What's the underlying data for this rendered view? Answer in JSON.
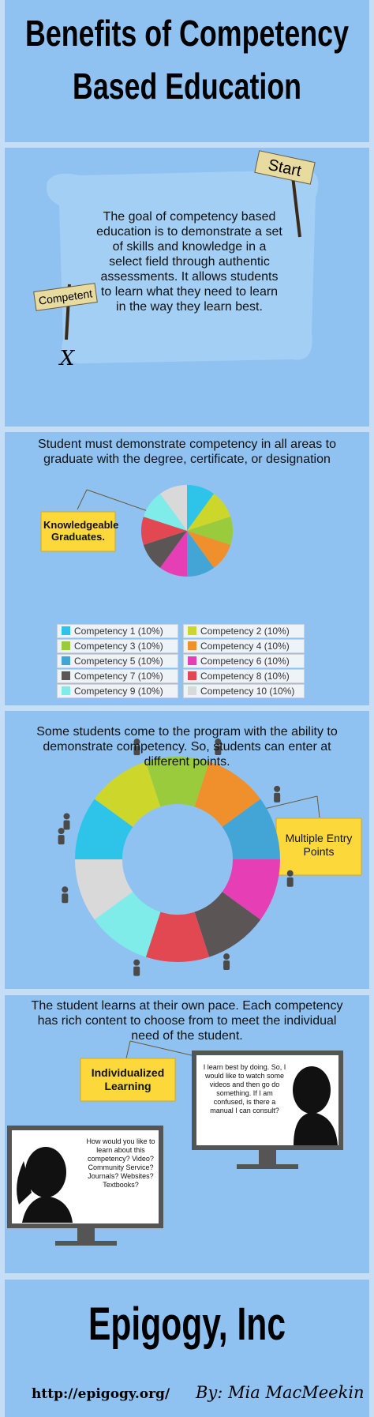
{
  "title_lines": [
    "Benefits of Competency",
    "Based Education"
  ],
  "intro": {
    "signs": [
      "Start",
      "Competent"
    ],
    "mark": "X",
    "text": "The goal of competency based education is to demonstrate a set of skills and knowledge in a select field through authentic assessments. It allows students to learn what they need to learn in the way they learn best."
  },
  "graduate_section": {
    "heading": "Student must demonstrate competency in all areas to graduate with the degree, certificate, or designation",
    "sign": "Knowledgeable Graduates."
  },
  "entry_section": {
    "heading": "Some students come to the program with the ability to demonstrate competency. So, students can enter at different points.",
    "sign": "Multiple Entry Points"
  },
  "pace_section": {
    "heading": "The student learns at their own pace. Each competency has rich content to choose from to meet the individual need of the student.",
    "sign": "Individualized Learning",
    "student_quote": "I learn best by doing. So, I would like to watch some videos and then go do something. If I am confused, is there a manual I can consult?",
    "question": "How would you like to learn about this competency? Video? Community Service? Journals? Websites? Textbooks?"
  },
  "footer": {
    "company": "Epigogy, Inc",
    "url": "http://epigogy.org/",
    "byline": "By: Mia MacMeekin"
  },
  "chart_data": [
    {
      "type": "pie",
      "categories": [
        "Competency 1 (10%)",
        "Competency 2 (10%)",
        "Competency 3 (10%)",
        "Competency 4 (10%)",
        "Competency 5 (10%)",
        "Competency 6 (10%)",
        "Competency 7 (10%)",
        "Competency 8 (10%)",
        "Competency 9 (10%)",
        "Competency 10 (10%)"
      ],
      "values": [
        10,
        10,
        10,
        10,
        10,
        10,
        10,
        10,
        10,
        10
      ],
      "colors": [
        "#2ec4ea",
        "#cdd62a",
        "#9acb3c",
        "#f0902c",
        "#42a5d6",
        "#e63fb6",
        "#5b5555",
        "#e24852",
        "#80ecea",
        "#d9d9d9"
      ]
    },
    {
      "type": "donut",
      "values": [
        10,
        10,
        10,
        10,
        10,
        10,
        10,
        10,
        10,
        10
      ],
      "colors": [
        "#2ec4ea",
        "#cdd62a",
        "#9acb3c",
        "#f0902c",
        "#42a5d6",
        "#e63fb6",
        "#5b5555",
        "#e24852",
        "#80ecea",
        "#d9d9d9"
      ]
    }
  ]
}
